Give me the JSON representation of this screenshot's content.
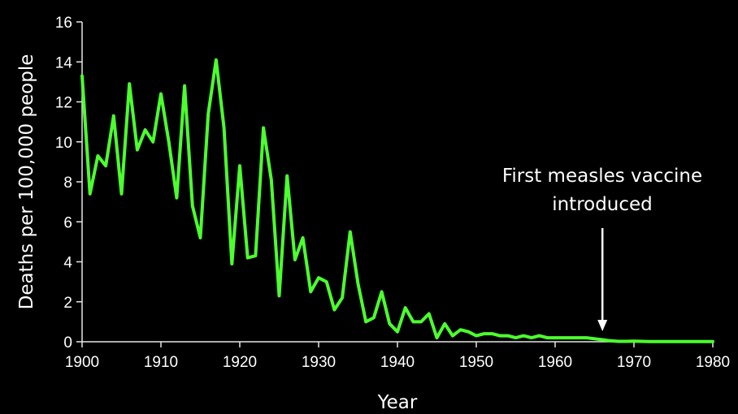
{
  "chart_data": {
    "type": "line",
    "title": "",
    "xlabel": "Year",
    "ylabel": "Deaths per 100,000 people",
    "xlim": [
      1900,
      1980
    ],
    "ylim": [
      0,
      16
    ],
    "xticks": [
      1900,
      1910,
      1920,
      1930,
      1940,
      1950,
      1960,
      1970,
      1980
    ],
    "yticks": [
      0,
      2,
      4,
      6,
      8,
      10,
      12,
      14,
      16
    ],
    "grid": false,
    "legend": "none",
    "series": [
      {
        "color": "#4cff2e",
        "x": [
          1900,
          1901,
          1902,
          1903,
          1904,
          1905,
          1906,
          1907,
          1908,
          1909,
          1910,
          1911,
          1912,
          1913,
          1914,
          1915,
          1916,
          1917,
          1918,
          1919,
          1920,
          1921,
          1922,
          1923,
          1924,
          1925,
          1926,
          1927,
          1928,
          1929,
          1930,
          1931,
          1932,
          1933,
          1934,
          1935,
          1936,
          1937,
          1938,
          1939,
          1940,
          1941,
          1942,
          1943,
          1944,
          1945,
          1946,
          1947,
          1948,
          1949,
          1950,
          1951,
          1952,
          1953,
          1954,
          1955,
          1956,
          1957,
          1958,
          1959,
          1960,
          1961,
          1962,
          1963,
          1964,
          1965,
          1966,
          1967,
          1968,
          1969,
          1970,
          1971,
          1972,
          1973,
          1974,
          1975,
          1976,
          1977,
          1978,
          1979,
          1980
        ],
        "y": [
          13.3,
          7.4,
          9.3,
          8.8,
          11.3,
          7.4,
          12.9,
          9.6,
          10.6,
          10.0,
          12.4,
          10.0,
          7.2,
          12.8,
          6.8,
          5.2,
          11.4,
          14.1,
          10.7,
          3.9,
          8.8,
          4.2,
          4.3,
          10.7,
          8.1,
          2.3,
          8.3,
          4.1,
          5.2,
          2.5,
          3.2,
          3.0,
          1.6,
          2.2,
          5.5,
          2.9,
          1.0,
          1.2,
          2.5,
          0.9,
          0.5,
          1.7,
          1.0,
          1.0,
          1.4,
          0.2,
          0.9,
          0.3,
          0.6,
          0.5,
          0.3,
          0.4,
          0.4,
          0.3,
          0.3,
          0.2,
          0.3,
          0.2,
          0.3,
          0.2,
          0.2,
          0.2,
          0.2,
          0.2,
          0.2,
          0.15,
          0.1,
          0.05,
          0.02,
          0.02,
          0.03,
          0.02,
          0.01,
          0.01,
          0.01,
          0.01,
          0.01,
          0.01,
          0.01,
          0.01,
          0.01
        ]
      }
    ],
    "annotations": [
      {
        "text_lines": [
          "First measles vaccine",
          "introduced"
        ],
        "x": 1966,
        "arrow": true,
        "color": "#ffffff"
      }
    ]
  }
}
